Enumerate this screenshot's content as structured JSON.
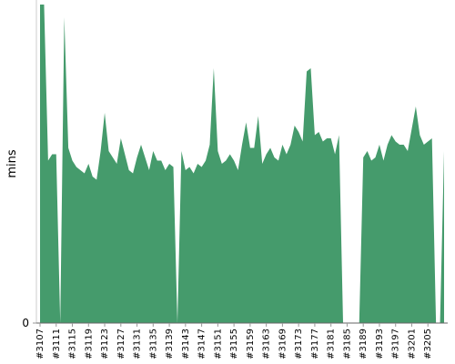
{
  "chart_data": {
    "type": "area",
    "y_label": "mins",
    "categories": [
      "#3107",
      null,
      null,
      null,
      "#3111",
      null,
      null,
      null,
      "#3115",
      null,
      null,
      null,
      "#3119",
      null,
      null,
      null,
      "#3123",
      null,
      null,
      null,
      "#3127",
      null,
      null,
      null,
      "#3131",
      null,
      null,
      null,
      "#3135",
      null,
      null,
      null,
      "#3139",
      null,
      null,
      null,
      "#3143",
      null,
      null,
      null,
      "#3147",
      null,
      null,
      null,
      "#3151",
      null,
      null,
      null,
      "#3155",
      null,
      null,
      null,
      "#3159",
      null,
      null,
      null,
      "#3163",
      null,
      null,
      null,
      "#3169",
      null,
      null,
      null,
      "#3173",
      null,
      null,
      null,
      "#3177",
      null,
      null,
      null,
      "#3181",
      null,
      null,
      null,
      "#3185",
      null,
      null,
      null,
      "#3189",
      null,
      null,
      null,
      "#3193",
      null,
      null,
      null,
      "#3197",
      null,
      null,
      null,
      "#3201",
      null,
      null,
      null,
      "#3205",
      null,
      null,
      null,
      null
    ],
    "values": [
      100,
      100,
      51,
      53,
      53,
      0,
      96,
      55,
      51,
      49,
      48,
      47,
      50,
      46,
      45,
      54,
      66,
      54,
      52,
      50,
      58,
      53,
      48,
      47,
      52,
      56,
      52,
      48,
      54,
      51,
      51,
      48,
      50,
      49,
      0,
      54,
      48,
      49,
      47,
      50,
      49,
      51,
      56,
      80,
      54,
      50,
      51,
      53,
      51,
      48,
      56,
      63,
      55,
      55,
      65,
      50,
      53,
      55,
      52,
      51,
      56,
      53,
      56,
      62,
      60,
      57,
      79,
      80,
      59,
      60,
      57,
      58,
      58,
      53,
      59,
      0,
      0,
      0,
      0,
      0,
      52,
      54,
      51,
      52,
      56,
      51,
      56,
      59,
      57,
      56,
      56,
      54,
      61,
      68,
      59,
      56,
      57,
      58,
      0,
      0,
      54
    ],
    "color": "#459b6c",
    "ylim": [
      0,
      100
    ],
    "yticks": [
      0
    ]
  }
}
